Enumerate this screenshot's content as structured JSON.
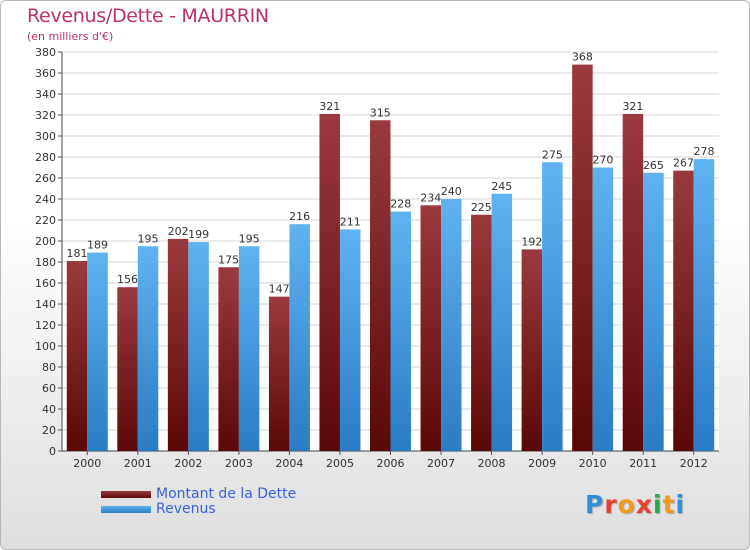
{
  "chart_data": {
    "type": "bar",
    "title": "Revenus/Dette - MAURRIN",
    "subtitle": "(en milliers d'€)",
    "categories": [
      "2000",
      "2001",
      "2002",
      "2003",
      "2004",
      "2005",
      "2006",
      "2007",
      "2008",
      "2009",
      "2010",
      "2011",
      "2012"
    ],
    "series": [
      {
        "name": "Montant de la Dette",
        "values": [
          181,
          156,
          202,
          175,
          147,
          321,
          315,
          234,
          225,
          192,
          368,
          321,
          267
        ]
      },
      {
        "name": "Revenus",
        "values": [
          189,
          195,
          199,
          195,
          216,
          211,
          228,
          240,
          245,
          275,
          270,
          265,
          278
        ]
      }
    ],
    "ylim": [
      0,
      380
    ],
    "ytick_step": 20,
    "grid": true,
    "legend_position": "bottom-left"
  },
  "logo": {
    "text": "Proxiti",
    "letter_colors": [
      "#2f8fd9",
      "#e8402f",
      "#f39a1a",
      "#e8402f",
      "#2aa74a",
      "#f39a1a",
      "#2f8fd9"
    ]
  },
  "colors": {
    "debt": "#8a2a2f",
    "revenue": "#4ea3e6",
    "text": "#b8326b",
    "legend_text": "#3b63d6"
  }
}
